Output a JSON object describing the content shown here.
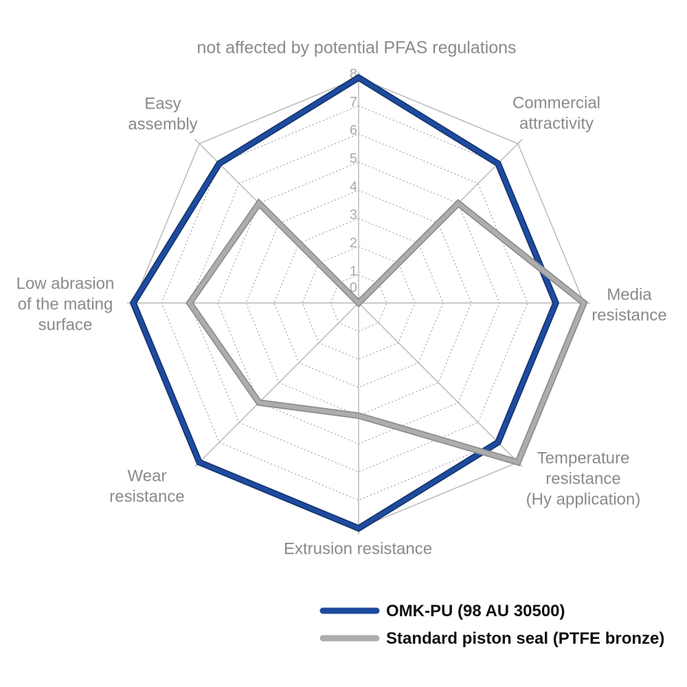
{
  "chart_data": {
    "type": "radar",
    "title": "not affected by potential PFAS regulations",
    "levels": {
      "min": 0,
      "max": 8,
      "ticks": [
        0,
        1,
        2,
        3,
        4,
        5,
        6,
        7,
        8
      ]
    },
    "grid": {
      "inner_rings": "dotted",
      "outer_ring": "solid",
      "shape": "octagon",
      "legend_position": "bottom"
    },
    "axes": [
      {
        "label": "not affected by potential PFAS regulations",
        "lines": [
          "not affected by potential PFAS regulations"
        ]
      },
      {
        "label": "Commercial attractivity",
        "lines": [
          "Commercial",
          "attractivity"
        ]
      },
      {
        "label": "Media resistance",
        "lines": [
          "Media",
          "resistance"
        ]
      },
      {
        "label": "Temperature resistance (Hy application)",
        "lines": [
          "Temperature",
          "resistance",
          "(Hy application)"
        ]
      },
      {
        "label": "Extrusion resistance",
        "lines": [
          "Extrusion resistance"
        ]
      },
      {
        "label": "Wear resistance",
        "lines": [
          "Wear",
          "resistance"
        ]
      },
      {
        "label": "Low abrasion of the mating surface",
        "lines": [
          "Low abrasion",
          "of the mating",
          "surface"
        ]
      },
      {
        "label": "Easy assembly",
        "lines": [
          "Easy",
          "assembly"
        ]
      }
    ],
    "series": [
      {
        "name": "OMK-PU (98 AU 30500)",
        "color": "#1e4b9f",
        "edge_color": "#16366f",
        "values": [
          8,
          7,
          7,
          7,
          8,
          8,
          8,
          7
        ]
      },
      {
        "name": "Standard piston seal (PTFE bronze)",
        "color": "#adadad",
        "edge_color": "#8d8d8d",
        "values": [
          0,
          5,
          8,
          8,
          4,
          5,
          6,
          5
        ]
      }
    ]
  },
  "colors": {
    "background": "#ffffff",
    "axis_label_text": "#8a8a8a",
    "tick_text": "#a9a9a9",
    "grid_line": "#a9a9a9",
    "dotted_ring": "#a7a3b2",
    "legend_text": "#0f0f0f"
  }
}
